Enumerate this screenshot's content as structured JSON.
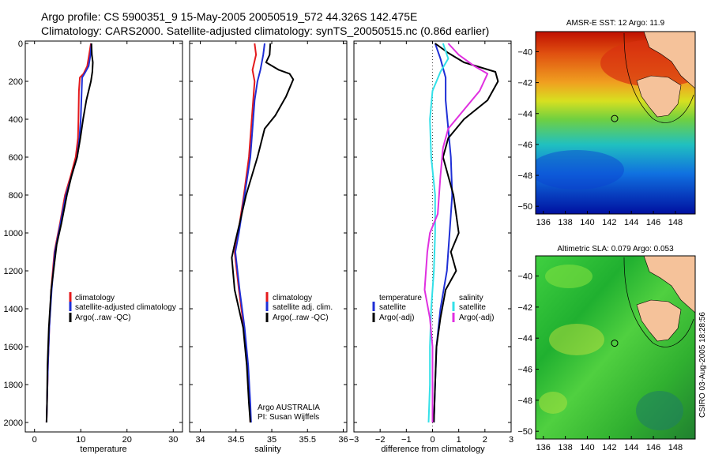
{
  "header": {
    "line1": "Argo profile: CS 5900351_9 15-May-2005 20050519_572 44.326S 142.475E",
    "line2": "Climatology: CARS2000. Satellite-adjusted climatology: synTS_20050515.nc (0.86d earlier)"
  },
  "side_label": "CSIRO 03-Aug-2005 18:28:56",
  "colors": {
    "climatology": "#e41a1c",
    "satellite": "#1f2fd6",
    "argo": "#000000",
    "cyan": "#33e0e8",
    "magenta": "#e030e0",
    "land": "#f5c29a"
  },
  "chart_data": [
    {
      "id": "temperature",
      "type": "line",
      "xlabel": "temperature",
      "xlim": [
        -2,
        32
      ],
      "ylim": [
        0,
        2050
      ],
      "xticks": [
        0,
        10,
        20,
        30
      ],
      "yticks": [
        0,
        200,
        400,
        600,
        800,
        1000,
        1200,
        1400,
        1600,
        1800,
        2000
      ],
      "y_inverted": true,
      "legend": [
        "climatology",
        "satellite-adjusted climatology",
        "Argo(..raw -QC)"
      ],
      "series": [
        {
          "name": "climatology",
          "color": "#e41a1c",
          "points": [
            [
              12.2,
              0
            ],
            [
              11.8,
              60
            ],
            [
              11.4,
              120
            ],
            [
              10.6,
              160
            ],
            [
              9.8,
              180
            ],
            [
              9.6,
              250
            ],
            [
              9.5,
              400
            ],
            [
              9.4,
              500
            ],
            [
              8.9,
              600
            ],
            [
              7.8,
              700
            ],
            [
              6.6,
              800
            ],
            [
              5.5,
              950
            ],
            [
              4.3,
              1100
            ],
            [
              3.6,
              1300
            ],
            [
              3.2,
              1500
            ],
            [
              2.9,
              1700
            ],
            [
              2.7,
              1900
            ],
            [
              2.6,
              2000
            ]
          ]
        },
        {
          "name": "satellite-adjusted climatology",
          "color": "#1f2fd6",
          "points": [
            [
              12.3,
              0
            ],
            [
              12.1,
              60
            ],
            [
              11.7,
              120
            ],
            [
              10.8,
              160
            ],
            [
              10.3,
              180
            ],
            [
              10.2,
              250
            ],
            [
              10.0,
              400
            ],
            [
              9.7,
              500
            ],
            [
              9.2,
              600
            ],
            [
              8.0,
              700
            ],
            [
              6.8,
              800
            ],
            [
              5.6,
              950
            ],
            [
              4.4,
              1100
            ],
            [
              3.7,
              1300
            ],
            [
              3.2,
              1500
            ],
            [
              2.9,
              1700
            ],
            [
              2.7,
              1900
            ],
            [
              2.6,
              2000
            ]
          ]
        },
        {
          "name": "Argo(..raw -QC)",
          "color": "#000000",
          "points": [
            [
              12.3,
              0
            ],
            [
              12.4,
              60
            ],
            [
              12.6,
              100
            ],
            [
              12.5,
              150
            ],
            [
              12.2,
              200
            ],
            [
              11.2,
              300
            ],
            [
              10.5,
              400
            ],
            [
              9.9,
              500
            ],
            [
              9.2,
              600
            ],
            [
              8.0,
              700
            ],
            [
              7.0,
              800
            ],
            [
              5.8,
              950
            ],
            [
              4.8,
              1060
            ],
            [
              3.6,
              1300
            ],
            [
              3.1,
              1500
            ],
            [
              2.8,
              1700
            ],
            [
              2.7,
              1900
            ],
            [
              2.6,
              2000
            ]
          ]
        }
      ]
    },
    {
      "id": "salinity",
      "type": "line",
      "xlabel": "salinity",
      "xlim": [
        33.85,
        36.05
      ],
      "ylim": [
        0,
        2050
      ],
      "xticks": [
        34,
        34.5,
        35,
        35.5,
        36
      ],
      "yticks": [
        0,
        200,
        400,
        600,
        800,
        1000,
        1200,
        1400,
        1600,
        1800,
        2000
      ],
      "y_inverted": true,
      "legend": [
        "climatology",
        "satellite adj. clim.",
        "Argo(..raw -QC)"
      ],
      "footer": [
        "Argo AUSTRALIA",
        "PI: Susan Wijffels"
      ],
      "series": [
        {
          "name": "climatology",
          "color": "#e41a1c",
          "points": [
            [
              34.76,
              0
            ],
            [
              34.78,
              60
            ],
            [
              34.73,
              140
            ],
            [
              34.76,
              200
            ],
            [
              34.74,
              300
            ],
            [
              34.68,
              600
            ],
            [
              34.61,
              800
            ],
            [
              34.53,
              1000
            ],
            [
              34.48,
              1100
            ],
            [
              34.54,
              1300
            ],
            [
              34.61,
              1500
            ],
            [
              34.66,
              1700
            ],
            [
              34.69,
              1900
            ],
            [
              34.7,
              2000
            ]
          ]
        },
        {
          "name": "satellite adj. clim.",
          "color": "#1f2fd6",
          "points": [
            [
              34.9,
              0
            ],
            [
              34.88,
              60
            ],
            [
              34.84,
              140
            ],
            [
              34.8,
              200
            ],
            [
              34.76,
              300
            ],
            [
              34.7,
              600
            ],
            [
              34.62,
              800
            ],
            [
              34.54,
              1000
            ],
            [
              34.49,
              1100
            ],
            [
              34.55,
              1300
            ],
            [
              34.62,
              1500
            ],
            [
              34.67,
              1700
            ],
            [
              34.7,
              1900
            ],
            [
              34.71,
              2000
            ]
          ]
        },
        {
          "name": "Argo(..raw -QC)",
          "color": "#000000",
          "points": [
            [
              34.98,
              0
            ],
            [
              34.97,
              60
            ],
            [
              34.92,
              100
            ],
            [
              35.1,
              140
            ],
            [
              35.25,
              160
            ],
            [
              35.3,
              190
            ],
            [
              35.2,
              280
            ],
            [
              35.05,
              380
            ],
            [
              34.9,
              450
            ],
            [
              34.8,
              600
            ],
            [
              34.64,
              800
            ],
            [
              34.55,
              950
            ],
            [
              34.48,
              1060
            ],
            [
              34.44,
              1130
            ],
            [
              34.48,
              1300
            ],
            [
              34.6,
              1500
            ],
            [
              34.65,
              1700
            ],
            [
              34.68,
              1900
            ],
            [
              34.7,
              2000
            ]
          ]
        }
      ]
    },
    {
      "id": "difference",
      "type": "line",
      "xlabel": "difference from climatology",
      "xlim": [
        -3,
        3
      ],
      "ylim": [
        0,
        2050
      ],
      "xticks": [
        -3,
        -2,
        -1,
        0,
        1,
        2,
        3
      ],
      "yticks": [
        0,
        200,
        400,
        600,
        800,
        1000,
        1200,
        1400,
        1600,
        1800,
        2000
      ],
      "y_inverted": true,
      "legend_left": {
        "title": "temperature",
        "items": [
          "satellite",
          "Argo(-adj)"
        ]
      },
      "legend_right": {
        "title": "salinity",
        "items": [
          "satellite",
          "Argo(-adj)"
        ]
      },
      "series": [
        {
          "name": "temperature satellite",
          "color": "#1f2fd6",
          "points": [
            [
              0.1,
              0
            ],
            [
              0.3,
              80
            ],
            [
              0.5,
              180
            ],
            [
              0.5,
              300
            ],
            [
              0.6,
              450
            ],
            [
              0.7,
              600
            ],
            [
              0.75,
              800
            ],
            [
              0.65,
              1000
            ],
            [
              0.55,
              1200
            ],
            [
              0.3,
              1400
            ],
            [
              0.15,
              1600
            ],
            [
              0.1,
              1800
            ],
            [
              0.05,
              2000
            ]
          ]
        },
        {
          "name": "temperature Argo(-adj)",
          "color": "#000000",
          "points": [
            [
              0.1,
              0
            ],
            [
              0.6,
              50
            ],
            [
              1.2,
              100
            ],
            [
              2.4,
              150
            ],
            [
              2.5,
              200
            ],
            [
              2.1,
              300
            ],
            [
              1.2,
              400
            ],
            [
              0.6,
              500
            ],
            [
              0.4,
              600
            ],
            [
              0.8,
              800
            ],
            [
              1.0,
              1000
            ],
            [
              0.7,
              1100
            ],
            [
              0.9,
              1200
            ],
            [
              0.5,
              1300
            ],
            [
              0.3,
              1450
            ],
            [
              0.15,
              1600
            ],
            [
              0.1,
              1800
            ],
            [
              0.05,
              2000
            ]
          ]
        },
        {
          "name": "salinity satellite",
          "color": "#33e0e8",
          "points": [
            [
              0.4,
              0
            ],
            [
              0.6,
              80
            ],
            [
              0.3,
              150
            ],
            [
              0.0,
              250
            ],
            [
              -0.1,
              400
            ],
            [
              -0.05,
              600
            ],
            [
              0.1,
              800
            ],
            [
              0.1,
              1000
            ],
            [
              0.05,
              1200
            ],
            [
              -0.05,
              1400
            ],
            [
              -0.1,
              1600
            ],
            [
              -0.1,
              1800
            ],
            [
              -0.15,
              2000
            ]
          ]
        },
        {
          "name": "salinity Argo(-adj)",
          "color": "#e030e0",
          "points": [
            [
              0.6,
              0
            ],
            [
              1.0,
              60
            ],
            [
              1.6,
              120
            ],
            [
              2.1,
              160
            ],
            [
              1.8,
              250
            ],
            [
              1.2,
              350
            ],
            [
              0.6,
              450
            ],
            [
              0.4,
              550
            ],
            [
              0.3,
              700
            ],
            [
              0.2,
              900
            ],
            [
              -0.1,
              1000
            ],
            [
              -0.2,
              1100
            ],
            [
              -0.3,
              1300
            ],
            [
              -0.1,
              1450
            ],
            [
              0.0,
              1600
            ],
            [
              0.0,
              1800
            ],
            [
              0.0,
              2000
            ]
          ]
        }
      ]
    },
    {
      "id": "sst_map",
      "type": "heatmap",
      "title": "AMSR-E SST: 12 Argo: 11.9",
      "xlim": [
        135.3,
        149.8
      ],
      "ylim": [
        -50.5,
        -38.7
      ],
      "xticks": [
        136,
        138,
        140,
        142,
        144,
        146,
        148
      ],
      "yticks": [
        -40,
        -42,
        -44,
        -46,
        -48,
        -50
      ],
      "float_position": [
        142.475,
        -44.326
      ]
    },
    {
      "id": "sla_map",
      "type": "heatmap",
      "title": "Altimetric SLA: 0.079 Argo: 0.053",
      "xlim": [
        135.3,
        149.8
      ],
      "ylim": [
        -50.5,
        -38.7
      ],
      "xticks": [
        136,
        138,
        140,
        142,
        144,
        146,
        148
      ],
      "yticks": [
        -40,
        -42,
        -44,
        -46,
        -48,
        -50
      ],
      "float_position": [
        142.475,
        -44.326
      ]
    }
  ]
}
